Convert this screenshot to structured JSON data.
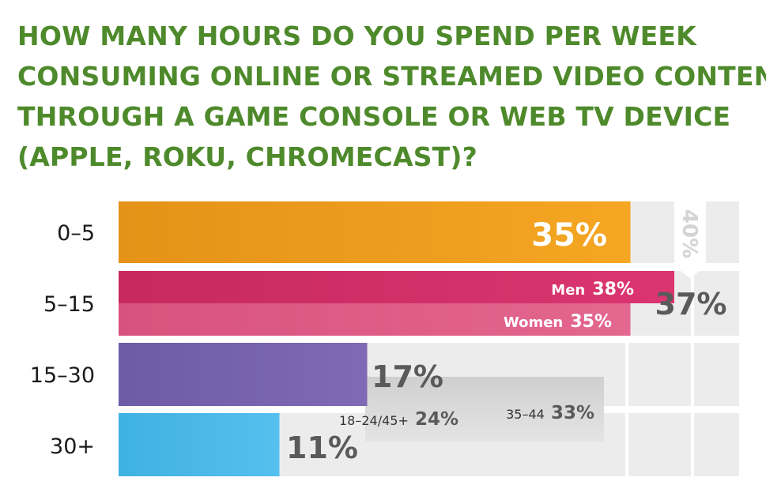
{
  "title_lines": [
    "HOW MANY HOURS DO YOU SPEND PER WEEK",
    "CONSUMING ONLINE OR STREAMED VIDEO CONTENT",
    "THROUGH A GAME CONSOLE OR WEB TV DEVICE",
    "(APPLE, ROKU, CHROMECAST)?"
  ],
  "chart_data": {
    "type": "bar",
    "orientation": "horizontal",
    "title": "HOW MANY HOURS DO YOU SPEND PER WEEK CONSUMING ONLINE OR STREAMED VIDEO CONTENT THROUGH A GAME CONSOLE OR WEB TV DEVICE (APPLE, ROKU, CHROMECAST)?",
    "categories": [
      "0–5",
      "5–15",
      "15–30",
      "30+"
    ],
    "values": [
      35,
      37,
      17,
      11
    ],
    "labels": [
      "35%",
      "37%",
      "17%",
      "11%"
    ],
    "colors": [
      "#f0a01e",
      "#d42f68",
      "#7a64b0",
      "#4cb8e8"
    ],
    "breakdowns": [
      {
        "category": "0–5",
        "label": "40%",
        "value": 40,
        "style": "background-callout"
      },
      {
        "category": "5–15",
        "label": "Men",
        "value_label": "38%",
        "value": 38,
        "color": "#d42f68"
      },
      {
        "category": "5–15",
        "label": "Women",
        "value_label": "35%",
        "value": 35,
        "color": "#e15c8a"
      },
      {
        "category": "15–30 / 30+",
        "label": "18–24/45+",
        "value_label": "24%",
        "value": 24
      },
      {
        "category": "15–30 / 30+",
        "label": "35–44",
        "value_label": "33%",
        "value": 33
      }
    ],
    "xlim": [
      0,
      40
    ],
    "grid": true
  }
}
